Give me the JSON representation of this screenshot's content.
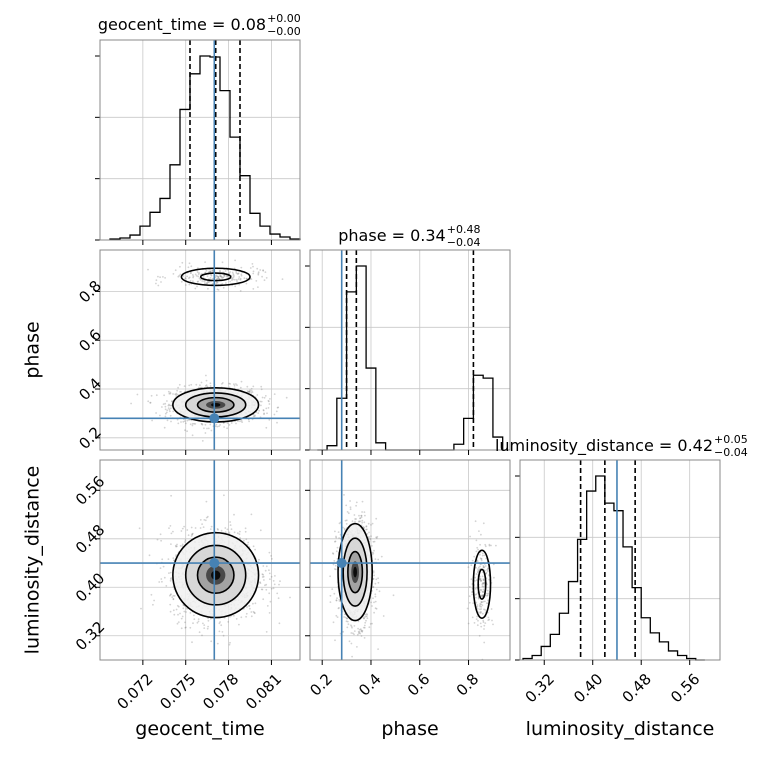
{
  "chart_data": {
    "type": "corner",
    "params": [
      "geocent_time",
      "phase",
      "luminosity_distance"
    ],
    "axis_labels": [
      "geocent_time",
      "phase",
      "luminosity_distance"
    ],
    "truths": [
      0.077,
      0.28,
      0.44
    ],
    "grid": true,
    "colors": {
      "truth": "#4682b4",
      "hist": "#000000",
      "quantile": "#000000",
      "grid": "#c8c8c8",
      "frame": "#888888"
    },
    "ticks": {
      "geocent_time": {
        "values": [
          0.072,
          0.075,
          0.078,
          0.081
        ],
        "labels": [
          "0.072",
          "0.075",
          "0.078",
          "0.081"
        ]
      },
      "phase": {
        "values": [
          0.2,
          0.4,
          0.6,
          0.8
        ],
        "labels": [
          "0.2",
          "0.4",
          "0.6",
          "0.8"
        ]
      },
      "luminosity_distance": {
        "values": [
          0.32,
          0.4,
          0.48,
          0.56
        ],
        "labels": [
          "0.32",
          "0.40",
          "0.48",
          "0.56"
        ]
      }
    },
    "titles": [
      {
        "param": "geocent_time",
        "text": "geocent_time = 0.08",
        "sup": "+0.00",
        "sub": "−0.00"
      },
      {
        "param": "phase",
        "text": "phase = 0.34",
        "sup": "+0.48",
        "sub": "−0.04"
      },
      {
        "param": "luminosity_distance",
        "text": "luminosity_distance = 0.42",
        "sup": "+0.05",
        "sub": "−0.04"
      }
    ],
    "diagonals": [
      {
        "param": "geocent_time",
        "xlim": [
          0.069,
          0.083
        ],
        "bin_edges": [
          0.0697,
          0.0704,
          0.0711,
          0.0718,
          0.0725,
          0.0732,
          0.0739,
          0.0746,
          0.0753,
          0.076,
          0.0767,
          0.0774,
          0.0781,
          0.0788,
          0.0795,
          0.0802,
          0.0809,
          0.0816,
          0.0823,
          0.083
        ],
        "counts": [
          1,
          2,
          5,
          14,
          28,
          42,
          76,
          132,
          168,
          186,
          185,
          151,
          104,
          65,
          27,
          14,
          6,
          3,
          1
        ],
        "quantiles": [
          0.0753,
          0.0771,
          0.0788
        ]
      },
      {
        "param": "phase",
        "xlim": [
          0.15,
          0.97
        ],
        "bin_edges": [
          0.18,
          0.22,
          0.26,
          0.3,
          0.34,
          0.38,
          0.42,
          0.46,
          0.5,
          0.54,
          0.58,
          0.62,
          0.66,
          0.7,
          0.74,
          0.78,
          0.82,
          0.86,
          0.9,
          0.94
        ],
        "counts": [
          0,
          3,
          36,
          110,
          128,
          57,
          5,
          0,
          0,
          0,
          0,
          0,
          0,
          0,
          4,
          22,
          52,
          50,
          9
        ],
        "quantiles": [
          0.3,
          0.34,
          0.82
        ]
      },
      {
        "param": "luminosity_distance",
        "xlim": [
          0.28,
          0.61
        ],
        "bin_edges": [
          0.285,
          0.3,
          0.315,
          0.33,
          0.345,
          0.36,
          0.375,
          0.39,
          0.405,
          0.42,
          0.435,
          0.45,
          0.465,
          0.48,
          0.495,
          0.51,
          0.525,
          0.54,
          0.555,
          0.57,
          0.585
        ],
        "counts": [
          1,
          3,
          9,
          17,
          31,
          52,
          80,
          112,
          122,
          104,
          99,
          75,
          48,
          28,
          18,
          12,
          6,
          3,
          1,
          0
        ],
        "quantiles": [
          0.38,
          0.42,
          0.47
        ]
      }
    ],
    "pairs": [
      {
        "x": "geocent_time",
        "y": "phase",
        "xlim": [
          0.069,
          0.083
        ],
        "ylim": [
          0.15,
          0.97
        ],
        "modes": [
          {
            "cx": 0.0771,
            "cy": 0.335,
            "sx": 0.0015,
            "sy": 0.035,
            "w": 0.84
          },
          {
            "cx": 0.0771,
            "cy": 0.86,
            "sx": 0.0015,
            "sy": 0.022,
            "w": 0.16
          }
        ]
      },
      {
        "x": "geocent_time",
        "y": "luminosity_distance",
        "xlim": [
          0.069,
          0.083
        ],
        "ylim": [
          0.28,
          0.61
        ],
        "modes": [
          {
            "cx": 0.0771,
            "cy": 0.42,
            "sx": 0.0015,
            "sy": 0.035,
            "w": 1.0
          }
        ]
      },
      {
        "x": "phase",
        "y": "luminosity_distance",
        "xlim": [
          0.15,
          0.97
        ],
        "ylim": [
          0.28,
          0.61
        ],
        "modes": [
          {
            "cx": 0.335,
            "cy": 0.425,
            "sx": 0.035,
            "sy": 0.04,
            "w": 0.84
          },
          {
            "cx": 0.855,
            "cy": 0.405,
            "sx": 0.022,
            "sy": 0.035,
            "w": 0.16
          }
        ]
      }
    ]
  }
}
